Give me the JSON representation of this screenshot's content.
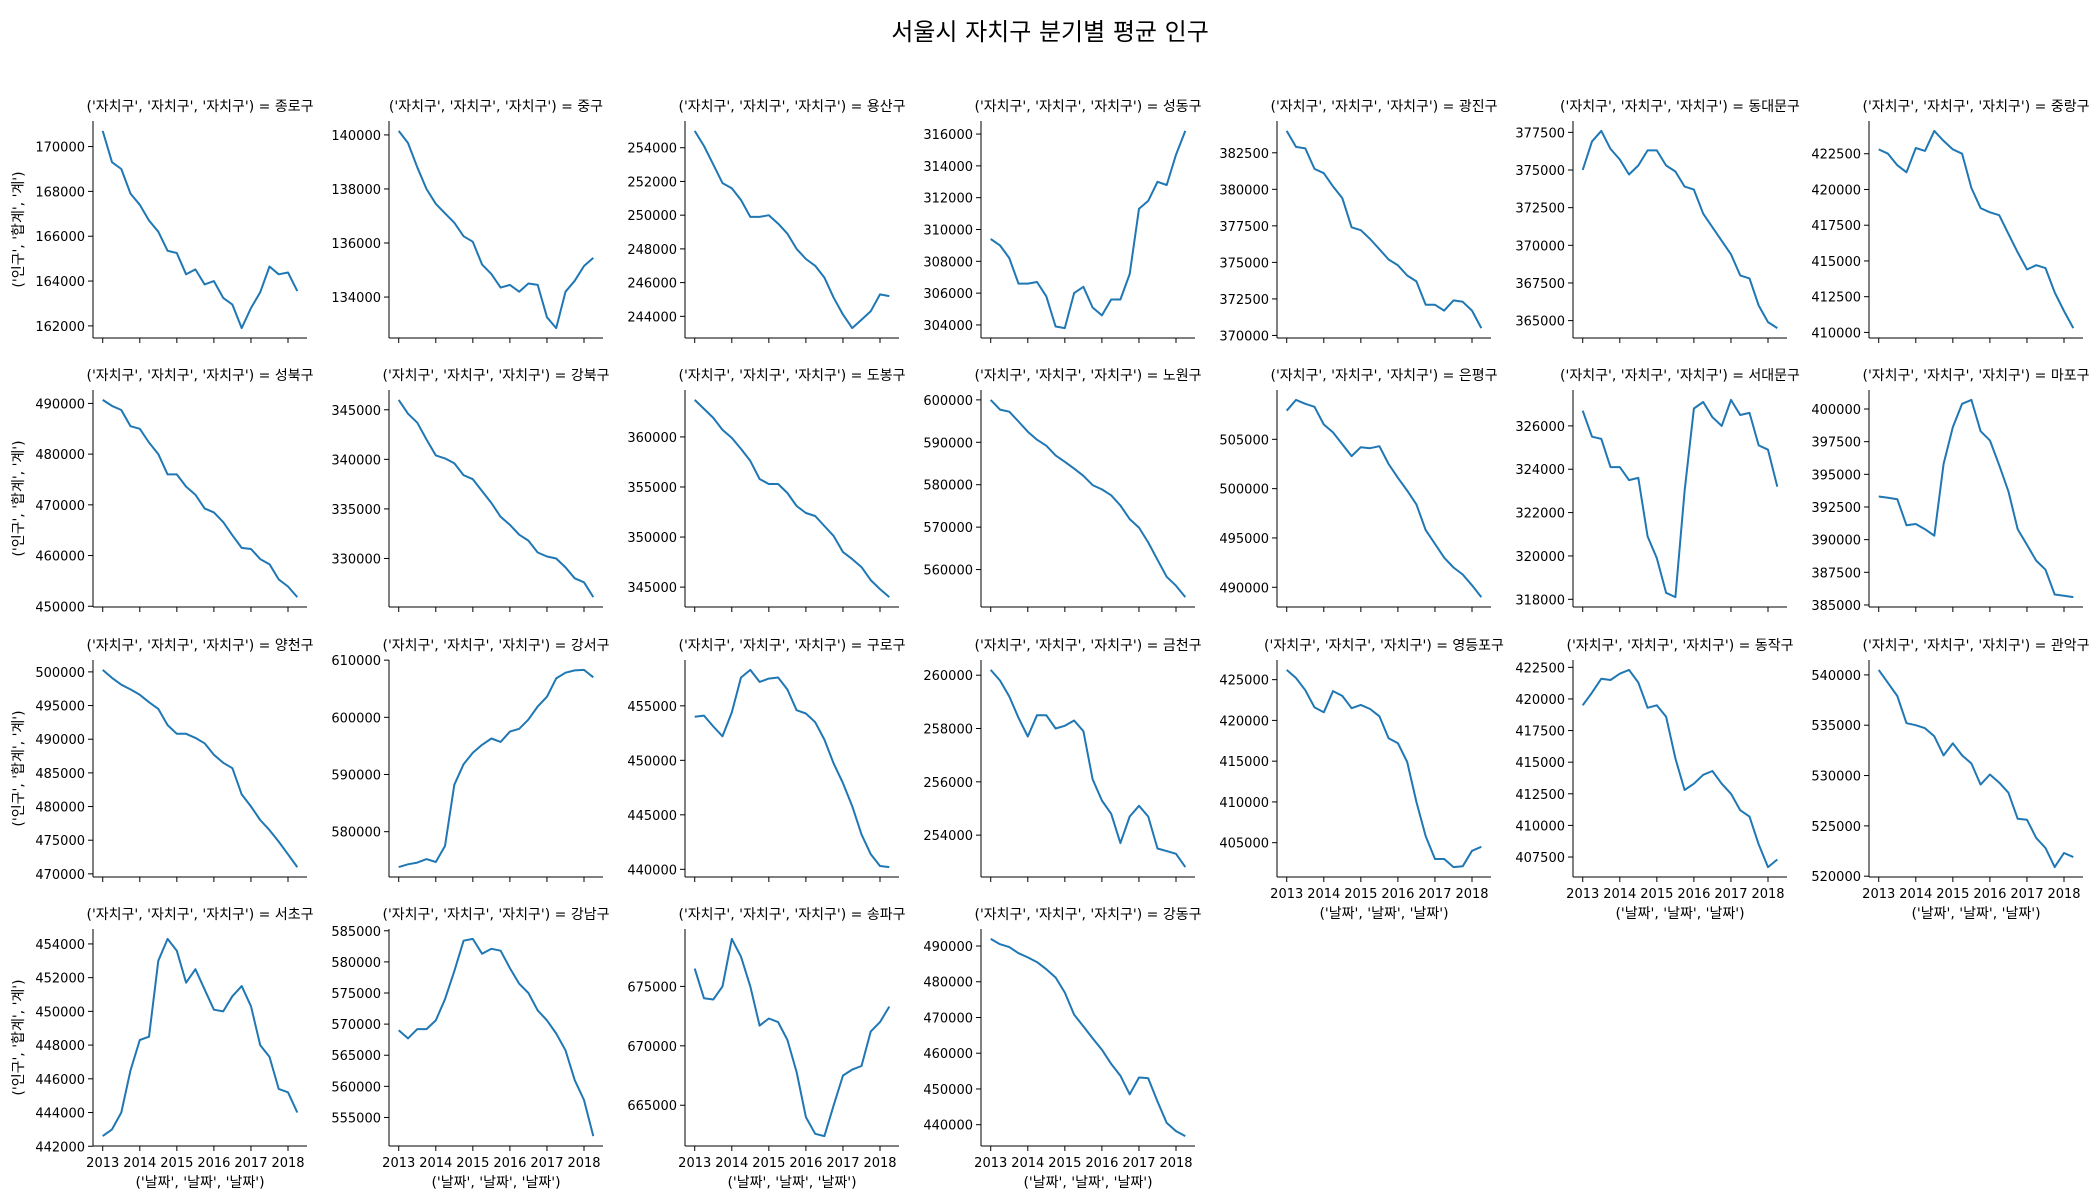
{
  "chart_data": {
    "type": "line",
    "title": "서울시 자치구 분기별 평균 인구",
    "xlabel": "('날짜', '날짜', '날짜')",
    "ylabel": "('인구', '합계', '계')",
    "x_start": 2013.0,
    "x_step": 0.25,
    "xticks": [
      2013,
      2014,
      2015,
      2016,
      2017,
      2018
    ],
    "line_color": "#1f77b4",
    "grid": false,
    "layout": "7 columns, facet grid",
    "panels": [
      {
        "title": "('자치구', '자치구', '자치구') = 종로구",
        "yticks": [
          162000,
          170000,
          2000
        ],
        "values": [
          170700,
          169300,
          169000,
          167900,
          167400,
          166700,
          166200,
          165350,
          165250,
          164300,
          164520,
          163850,
          164000,
          163250,
          162950,
          161900,
          162800,
          163500,
          164650,
          164300,
          164380,
          163550
        ]
      },
      {
        "title": "('자치구', '자치구', '자치구') = 중구",
        "yticks": [
          134000,
          140000,
          2000
        ],
        "values": [
          140150,
          139700,
          138800,
          138000,
          137450,
          137100,
          136750,
          136250,
          136050,
          135200,
          134850,
          134350,
          134450,
          134200,
          134500,
          134450,
          133250,
          132850,
          134200,
          134600,
          135150,
          135450
        ]
      },
      {
        "title": "('자치구', '자치구', '자치구') = 용산구",
        "yticks": [
          244000,
          254000,
          2000
        ],
        "values": [
          255000,
          254100,
          253000,
          251900,
          251600,
          250900,
          249900,
          249900,
          250000,
          249500,
          248900,
          248000,
          247400,
          247000,
          246300,
          245100,
          244100,
          243300,
          243800,
          244300,
          245300,
          245200
        ]
      },
      {
        "title": "('자치구', '자치구', '자치구') = 성동구",
        "yticks": [
          304000,
          316000,
          2000
        ],
        "values": [
          309400,
          309000,
          308200,
          306600,
          306600,
          306700,
          305800,
          303900,
          303800,
          306000,
          306400,
          305100,
          304600,
          305600,
          305600,
          307200,
          311300,
          311800,
          313000,
          312800,
          314700,
          316200
        ]
      },
      {
        "title": "('자치구', '자치구', '자치구') = 광진구",
        "yticks": [
          370000,
          382500,
          2500
        ],
        "values": [
          384000,
          382900,
          382800,
          381400,
          381100,
          380200,
          379400,
          377400,
          377200,
          376600,
          375900,
          375200,
          374800,
          374100,
          373700,
          372100,
          372100,
          371700,
          372400,
          372300,
          371700,
          370500
        ]
      },
      {
        "title": "('자치구', '자치구', '자치구') = 동대문구",
        "yticks": [
          365000,
          377500,
          2500
        ],
        "values": [
          375000,
          376900,
          377600,
          376400,
          375700,
          374700,
          375300,
          376300,
          376300,
          375300,
          374900,
          373900,
          373700,
          372100,
          371200,
          370300,
          369400,
          368000,
          367800,
          366000,
          364900,
          364500
        ]
      },
      {
        "title": "('자치구', '자치구', '자치구') = 중랑구",
        "yticks": [
          410000,
          422500,
          2500
        ],
        "values": [
          422800,
          422500,
          421700,
          421200,
          422900,
          422700,
          424100,
          423400,
          422800,
          422500,
          420100,
          418700,
          418400,
          418200,
          416900,
          415600,
          414400,
          414700,
          414500,
          412800,
          411500,
          410300
        ]
      },
      {
        "title": "('자치구', '자치구', '자치구') = 성북구",
        "yticks": [
          450000,
          490000,
          10000
        ],
        "values": [
          490700,
          489500,
          488700,
          485500,
          485000,
          482300,
          480000,
          476000,
          476000,
          473600,
          472000,
          469300,
          468500,
          466600,
          464000,
          461500,
          461300,
          459300,
          458300,
          455300,
          453900,
          451800
        ]
      },
      {
        "title": "('자치구', '자치구', '자치구') = 강북구",
        "yticks": [
          330000,
          345000,
          5000
        ],
        "values": [
          346000,
          344600,
          343700,
          342000,
          340400,
          340100,
          339600,
          338400,
          338000,
          336800,
          335600,
          334200,
          333400,
          332400,
          331800,
          330600,
          330200,
          330000,
          329100,
          328000,
          327600,
          326100
        ]
      },
      {
        "title": "('자치구', '자치구', '자치구') = 도봉구",
        "yticks": [
          345000,
          360000,
          5000
        ],
        "values": [
          363700,
          362800,
          361900,
          360700,
          359900,
          358800,
          357600,
          355800,
          355300,
          355300,
          354400,
          353100,
          352400,
          352100,
          351100,
          350100,
          348500,
          347800,
          347000,
          345700,
          344800,
          344000
        ]
      },
      {
        "title": "('자치구', '자치구', '자치구') = 노원구",
        "yticks": [
          560000,
          600000,
          10000
        ],
        "values": [
          600000,
          597700,
          597200,
          594900,
          592500,
          590600,
          589200,
          586900,
          585400,
          583800,
          582100,
          579900,
          578900,
          577500,
          575100,
          571900,
          569900,
          566400,
          562300,
          558300,
          556200,
          553500
        ]
      },
      {
        "title": "('자치구', '자치구', '자치구') = 은평구",
        "yticks": [
          490000,
          505000,
          5000
        ],
        "values": [
          507900,
          509000,
          508600,
          508300,
          506500,
          505700,
          504500,
          503300,
          504200,
          504100,
          504300,
          502500,
          501100,
          499800,
          498400,
          495800,
          494400,
          493000,
          492000,
          491300,
          490200,
          489000
        ]
      },
      {
        "title": "('자치구', '자치구', '자치구') = 서대문구",
        "yticks": [
          318000,
          326000,
          2000
        ],
        "values": [
          326700,
          325500,
          325400,
          324100,
          324100,
          323500,
          323600,
          320900,
          319900,
          318300,
          318100,
          323000,
          326800,
          327100,
          326400,
          326000,
          327200,
          326500,
          326600,
          325100,
          324900,
          323200
        ]
      },
      {
        "title": "('자치구', '자치구', '자치구') = 마포구",
        "yticks": [
          385000,
          400000,
          2500
        ],
        "values": [
          393300,
          393200,
          393100,
          391100,
          391200,
          390800,
          390300,
          395800,
          398600,
          400400,
          400700,
          398300,
          397600,
          395700,
          393700,
          390800,
          389600,
          388400,
          387700,
          385800,
          385700,
          385600
        ]
      },
      {
        "title": "('자치구', '자치구', '자치구') = 양천구",
        "yticks": [
          470000,
          500000,
          5000
        ],
        "values": [
          500300,
          499100,
          498100,
          497400,
          496600,
          495500,
          494500,
          492100,
          490800,
          490800,
          490200,
          489400,
          487700,
          486500,
          485700,
          481800,
          480000,
          478000,
          476500,
          474800,
          472900,
          471000
        ]
      },
      {
        "title": "('자치구', '자치구', '자치구') = 강서구",
        "yticks": [
          580000,
          610000,
          10000
        ],
        "values": [
          573800,
          574300,
          574600,
          575200,
          574700,
          577500,
          588200,
          591800,
          593800,
          595200,
          596300,
          595700,
          597500,
          598000,
          599600,
          601900,
          603600,
          606800,
          607800,
          608200,
          608300,
          607000
        ]
      },
      {
        "title": "('자치구', '자치구', '자치구') = 구로구",
        "yticks": [
          440000,
          455000,
          5000
        ],
        "values": [
          454000,
          454100,
          453100,
          452200,
          454400,
          457600,
          458300,
          457200,
          457500,
          457600,
          456500,
          454600,
          454300,
          453500,
          451900,
          449700,
          447900,
          445800,
          443200,
          441400,
          440300,
          440200
        ]
      },
      {
        "title": "('자치구', '자치구', '자치구') = 금천구",
        "yticks": [
          254000,
          260000,
          2000
        ],
        "values": [
          260200,
          259800,
          259200,
          258400,
          257700,
          258500,
          258500,
          258000,
          258100,
          258300,
          257900,
          256100,
          255300,
          254800,
          253700,
          254700,
          255100,
          254700,
          253500,
          253400,
          253300,
          252800
        ]
      },
      {
        "title": "('자치구', '자치구', '자치구') = 영등포구",
        "yticks": [
          405000,
          425000,
          5000
        ],
        "values": [
          426200,
          425200,
          423700,
          421600,
          421000,
          423600,
          423000,
          421500,
          421900,
          421400,
          420500,
          417800,
          417200,
          414900,
          410000,
          405800,
          403000,
          403000,
          402000,
          402100,
          404000,
          404500
        ]
      },
      {
        "title": "('자치구', '자치구', '자치구') = 동작구",
        "yticks": [
          407500,
          422500,
          2500
        ],
        "values": [
          419500,
          420500,
          421600,
          421500,
          422000,
          422300,
          421300,
          419300,
          419500,
          418600,
          415300,
          412800,
          413300,
          414000,
          414300,
          413300,
          412500,
          411200,
          410700,
          408500,
          406700,
          407300
        ]
      },
      {
        "title": "('자치구', '자치구', '자치구') = 관악구",
        "yticks": [
          520000,
          540000,
          5000
        ],
        "values": [
          540500,
          539200,
          537900,
          535200,
          535000,
          534700,
          533900,
          532000,
          533200,
          532000,
          531200,
          529100,
          530100,
          529300,
          528300,
          525700,
          525600,
          523800,
          522800,
          520900,
          522300,
          521900
        ]
      },
      {
        "title": "('자치구', '자치구', '자치구') = 서초구",
        "yticks": [
          442000,
          454000,
          2000
        ],
        "values": [
          442600,
          443000,
          444000,
          446500,
          448300,
          448500,
          453000,
          454300,
          453600,
          451700,
          452500,
          451300,
          450100,
          450000,
          450900,
          451500,
          450300,
          448000,
          447300,
          445400,
          445200,
          444000
        ]
      },
      {
        "title": "('자치구', '자치구', '자치구') = 강남구",
        "yticks": [
          555000,
          585000,
          5000
        ],
        "values": [
          569000,
          567700,
          569200,
          569200,
          570600,
          574000,
          578500,
          583400,
          583700,
          581300,
          582100,
          581800,
          579000,
          576500,
          575000,
          572200,
          570600,
          568500,
          565800,
          561000,
          557800,
          552000
        ]
      },
      {
        "title": "('자치구', '자치구', '자치구') = 송파구",
        "yticks": [
          665000,
          675000,
          5000
        ],
        "values": [
          676500,
          674000,
          673900,
          675000,
          679000,
          677500,
          675000,
          671700,
          672300,
          672000,
          670500,
          667800,
          664000,
          662600,
          662400,
          665000,
          667500,
          668000,
          668300,
          671200,
          672000,
          673300
        ]
      },
      {
        "title": "('자치구', '자치구', '자치구') = 강동구",
        "yticks": [
          440000,
          490000,
          10000
        ],
        "values": [
          492000,
          490500,
          489700,
          488000,
          486800,
          485500,
          483500,
          481200,
          477000,
          470800,
          467500,
          464200,
          461000,
          457000,
          453700,
          448500,
          453200,
          453000,
          446500,
          440500,
          438200,
          436800
        ]
      }
    ]
  }
}
